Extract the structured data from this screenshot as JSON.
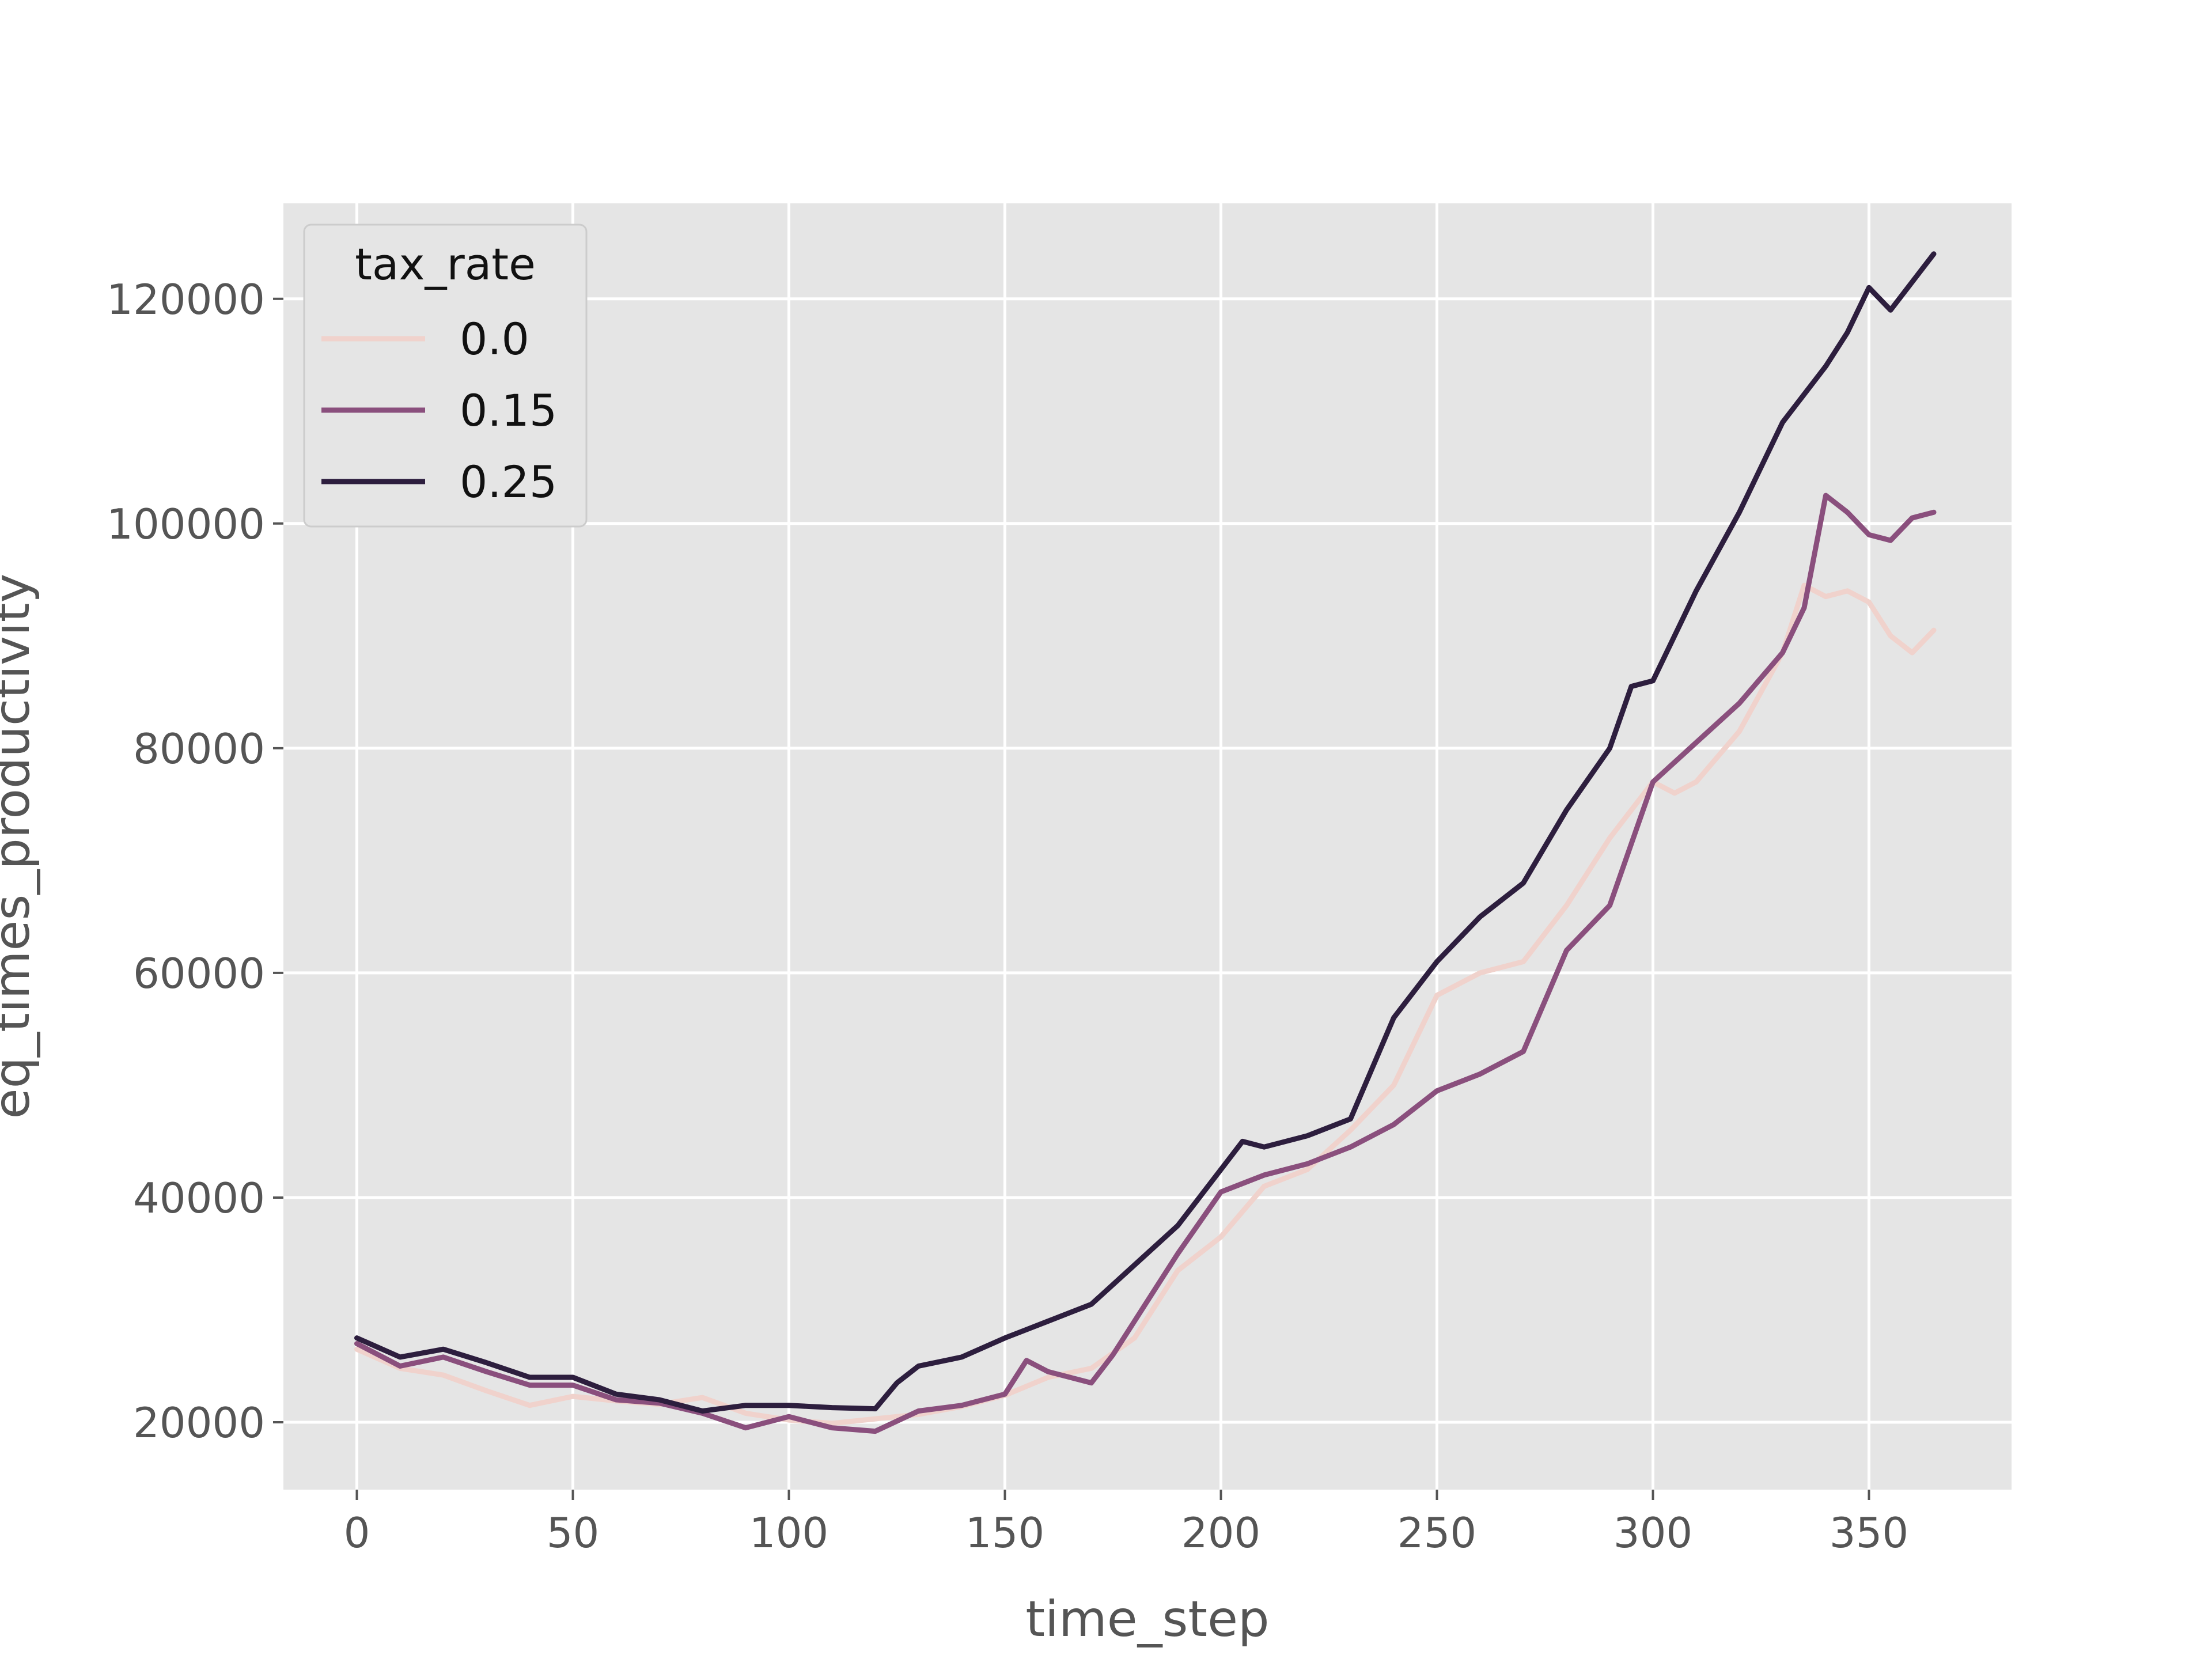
{
  "chart_data": {
    "type": "line",
    "title": "",
    "xlabel": "time_step",
    "ylabel": "eq_times_productivity",
    "xlim": [
      -17,
      383
    ],
    "ylim": [
      14000,
      128500
    ],
    "xticks": [
      0,
      50,
      100,
      150,
      200,
      250,
      300,
      350
    ],
    "yticks": [
      20000,
      40000,
      60000,
      80000,
      100000,
      120000
    ],
    "xtick_labels": [
      "0",
      "50",
      "100",
      "150",
      "200",
      "250",
      "300",
      "350"
    ],
    "ytick_labels": [
      "20000",
      "40000",
      "60000",
      "80000",
      "100000",
      "120000"
    ],
    "grid": true,
    "legend": {
      "title": "tax_rate",
      "placement": "top-left"
    },
    "series": [
      {
        "name": "0.0",
        "color": "#f0d2cc",
        "x": [
          0,
          10,
          20,
          30,
          40,
          50,
          60,
          70,
          80,
          90,
          100,
          110,
          120,
          130,
          140,
          150,
          160,
          170,
          180,
          190,
          200,
          210,
          220,
          230,
          240,
          250,
          260,
          270,
          280,
          290,
          300,
          305,
          310,
          320,
          330,
          335,
          340,
          345,
          350,
          355,
          360,
          365
        ],
        "y": [
          26500,
          24800,
          24200,
          22800,
          21500,
          22300,
          21900,
          21600,
          22200,
          20800,
          20200,
          19900,
          20300,
          20700,
          21400,
          22400,
          24000,
          24800,
          27500,
          33500,
          36500,
          41000,
          42500,
          46000,
          50000,
          58000,
          60000,
          61000,
          66000,
          72000,
          77000,
          76000,
          77000,
          81500,
          88500,
          94500,
          93500,
          94000,
          93000,
          90000,
          88500,
          90500
        ]
      },
      {
        "name": "0.15",
        "color": "#8a4f7d",
        "x": [
          0,
          10,
          20,
          30,
          40,
          50,
          60,
          70,
          80,
          90,
          100,
          110,
          120,
          130,
          140,
          150,
          155,
          160,
          170,
          175,
          180,
          190,
          200,
          210,
          220,
          230,
          240,
          250,
          260,
          270,
          280,
          290,
          300,
          310,
          320,
          330,
          335,
          340,
          345,
          350,
          355,
          360,
          365
        ],
        "y": [
          27000,
          25000,
          25800,
          24500,
          23300,
          23300,
          22000,
          21700,
          20800,
          19500,
          20500,
          19500,
          19200,
          21000,
          21500,
          22500,
          25500,
          24500,
          23500,
          26000,
          29000,
          35000,
          40500,
          42000,
          43000,
          44500,
          46500,
          49500,
          51000,
          53000,
          62000,
          66000,
          77000,
          80500,
          84000,
          88500,
          92500,
          102500,
          101000,
          99000,
          98500,
          100500,
          101000
        ]
      },
      {
        "name": "0.25",
        "color": "#2d1e3e",
        "x": [
          0,
          10,
          20,
          30,
          40,
          50,
          60,
          70,
          80,
          90,
          100,
          110,
          120,
          125,
          130,
          140,
          150,
          160,
          170,
          180,
          190,
          200,
          205,
          210,
          220,
          230,
          240,
          250,
          260,
          270,
          280,
          290,
          295,
          300,
          310,
          320,
          330,
          340,
          345,
          350,
          355,
          360,
          365
        ],
        "y": [
          27500,
          25800,
          26500,
          25300,
          24000,
          24000,
          22500,
          22000,
          21000,
          21500,
          21500,
          21300,
          21200,
          23500,
          25000,
          25800,
          27500,
          29000,
          30500,
          34000,
          37500,
          42500,
          45000,
          44500,
          45500,
          47000,
          56000,
          61000,
          65000,
          68000,
          74500,
          80000,
          85500,
          86000,
          94000,
          101000,
          109000,
          114000,
          117000,
          121000,
          119000,
          121500,
          124000
        ]
      }
    ]
  }
}
